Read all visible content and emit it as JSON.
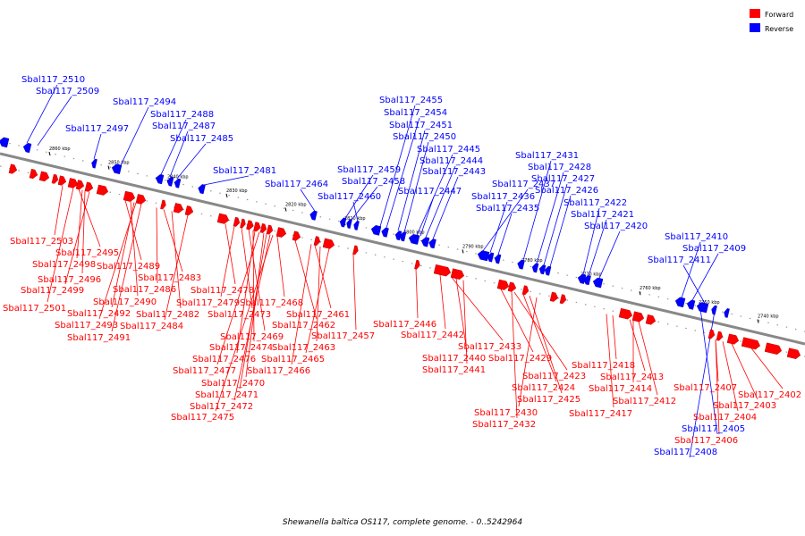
{
  "legend": {
    "forward": {
      "label": "Forward",
      "color": "#ff0000"
    },
    "reverse": {
      "label": "Reverse",
      "color": "#0000ff"
    }
  },
  "caption": "Shewanella baltica OS117, complete genome. - 0..5242964",
  "axis": {
    "unit": "kbp",
    "ticks": [
      {
        "kbp": 2860,
        "label": "2860 kbp"
      },
      {
        "kbp": 2850,
        "label": "2850 kbp"
      },
      {
        "kbp": 2840,
        "label": "2840 kbp"
      },
      {
        "kbp": 2830,
        "label": "2830 kbp"
      },
      {
        "kbp": 2820,
        "label": "2820 kbp"
      },
      {
        "kbp": 2810,
        "label": "2810 kbp"
      },
      {
        "kbp": 2800,
        "label": "2800 kbp"
      },
      {
        "kbp": 2790,
        "label": "2790 kbp"
      },
      {
        "kbp": 2780,
        "label": "2780 kbp"
      },
      {
        "kbp": 2770,
        "label": "2770 kbp"
      },
      {
        "kbp": 2760,
        "label": "2760 kbp"
      },
      {
        "kbp": 2750,
        "label": "2750 kbp"
      },
      {
        "kbp": 2740,
        "label": "2740 kbp"
      }
    ]
  },
  "reverse_genes": [
    "Sbal117_2510",
    "Sbal117_2509",
    "Sbal117_2497",
    "Sbal117_2494",
    "Sbal117_2488",
    "Sbal117_2487",
    "Sbal117_2485",
    "Sbal117_2481",
    "Sbal117_2464",
    "Sbal117_2459",
    "Sbal117_2458",
    "Sbal117_2460",
    "Sbal117_2455",
    "Sbal117_2454",
    "Sbal117_2451",
    "Sbal117_2450",
    "Sbal117_2445",
    "Sbal117_2444",
    "Sbal117_2443",
    "Sbal117_2447",
    "Sbal117_2437",
    "Sbal117_2436",
    "Sbal117_2435",
    "Sbal117_2431",
    "Sbal117_2428",
    "Sbal117_2427",
    "Sbal117_2426",
    "Sbal117_2422",
    "Sbal117_2421",
    "Sbal117_2420",
    "Sbal117_2410",
    "Sbal117_2409",
    "Sbal117_2411",
    "Sbal117_2405",
    "Sbal117_2408"
  ],
  "forward_genes": [
    "Sbal117_2503",
    "Sbal117_2495",
    "Sbal117_2498",
    "Sbal117_2496",
    "Sbal117_2499",
    "Sbal117_2501",
    "Sbal117_2489",
    "Sbal117_2490",
    "Sbal117_2492",
    "Sbal117_2493",
    "Sbal117_2491",
    "Sbal117_2483",
    "Sbal117_2486",
    "Sbal117_2482",
    "Sbal117_2484",
    "Sbal117_2478",
    "Sbal117_2479",
    "Sbal117_2473",
    "Sbal117_2469",
    "Sbal117_2474",
    "Sbal117_2476",
    "Sbal117_2477",
    "Sbal117_2470",
    "Sbal117_2471",
    "Sbal117_2472",
    "Sbal117_2475",
    "Sbal117_2468",
    "Sbal117_2462",
    "Sbal117_2461",
    "Sbal117_2463",
    "Sbal117_2465",
    "Sbal117_2466",
    "Sbal117_2457",
    "Sbal117_2446",
    "Sbal117_2442",
    "Sbal117_2433",
    "Sbal117_2440",
    "Sbal117_2441",
    "Sbal117_2429",
    "Sbal117_2423",
    "Sbal117_2424",
    "Sbal117_2425",
    "Sbal117_2430",
    "Sbal117_2432",
    "Sbal117_2418",
    "Sbal117_2413",
    "Sbal117_2414",
    "Sbal117_2412",
    "Sbal117_2417",
    "Sbal117_2407",
    "Sbal117_2402",
    "Sbal117_2403",
    "Sbal117_2404",
    "Sbal117_2406"
  ]
}
